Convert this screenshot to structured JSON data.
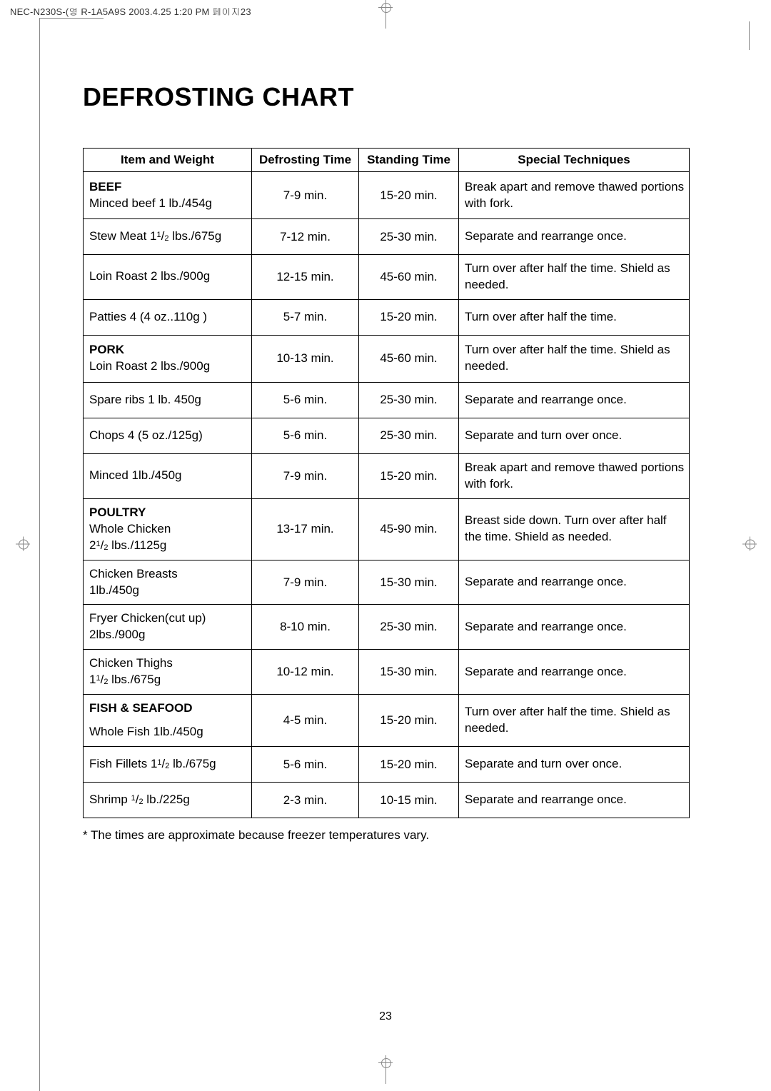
{
  "meta_header": "NEC-N230S-(영 R-1A5A9S  2003.4.25 1:20 PM  페이지23",
  "title": "DEFROSTING CHART",
  "headers": {
    "item": "Item and Weight",
    "defrost": "Defrosting Time",
    "standing": "Standing Time",
    "tech": "Special Techniques"
  },
  "rows": [
    {
      "cat": "BEEF",
      "item": "Minced beef 1 lb./454g",
      "def": "7-9 min.",
      "stand": "15-20 min.",
      "tech": "Break apart and remove thawed portions with fork.",
      "h": "tall"
    },
    {
      "item": "Stew Meat 1¹/₂ lbs./675g",
      "def": "7-12 min.",
      "stand": "25-30 min.",
      "tech": "Separate and rearrange once.",
      "h": "med",
      "frac": "1|1|2| lbs./675g",
      "prefix": "Stew Meat "
    },
    {
      "item": "Loin Roast 2 lbs./900g",
      "def": "12-15 min.",
      "stand": "45-60 min.",
      "tech": "Turn over after half the time. Shield as needed.",
      "h": "med"
    },
    {
      "item": "Patties 4 (4 oz..110g )",
      "def": "5-7 min.",
      "stand": "15-20 min.",
      "tech": "Turn over after half the time.",
      "h": "med"
    },
    {
      "cat": "PORK",
      "item": "Loin Roast 2 lbs./900g",
      "def": "10-13 min.",
      "stand": "45-60 min.",
      "tech": "Turn over after half the time. Shield as needed.",
      "h": "tall"
    },
    {
      "item": "Spare ribs 1 lb. 450g",
      "def": "5-6 min.",
      "stand": "25-30 min.",
      "tech": "Separate and rearrange once.",
      "h": "med"
    },
    {
      "item": "Chops 4 (5 oz./125g)",
      "def": "5-6 min.",
      "stand": "25-30 min.",
      "tech": "Separate and turn over once.",
      "h": "med"
    },
    {
      "item": "Minced 1lb./450g",
      "def": "7-9 min.",
      "stand": "15-20 min.",
      "tech": "Break apart and remove thawed portions with fork.",
      "h": "med"
    },
    {
      "cat": "POULTRY",
      "item": "Whole Chicken",
      "item2": "2¹/₂ lbs./1125g",
      "def": "13-17 min.",
      "stand": "45-90 min.",
      "tech": "Breast side down. Turn over after half the time. Shield as needed.",
      "h": "tall",
      "frac2": "2|1|2| lbs./1125g"
    },
    {
      "item": "Chicken Breasts",
      "item2": "1lb./450g",
      "def": "7-9 min.",
      "stand": "15-30 min.",
      "tech": "Separate and rearrange once.",
      "h": "med"
    },
    {
      "item": "Fryer Chicken(cut up)",
      "item2": "2lbs./900g",
      "def": "8-10 min.",
      "stand": "25-30 min.",
      "tech": "Separate and rearrange once.",
      "h": "med"
    },
    {
      "item": "Chicken Thighs",
      "item2": "1¹/₂ lbs./675g",
      "def": "10-12 min.",
      "stand": "15-30 min.",
      "tech": "Separate and rearrange once.",
      "h": "med",
      "frac2": "1|1|2| lbs./675g"
    },
    {
      "cat": "FISH & SEAFOOD",
      "item": "Whole Fish 1lb./450g",
      "def": "4-5 min.",
      "stand": "15-20 min.",
      "tech": "Turn over after half the time. Shield as needed.",
      "h": "tall",
      "gap": true
    },
    {
      "item": "Fish Fillets 1¹/₂ lb./675g",
      "def": "5-6 min.",
      "stand": "15-20 min.",
      "tech": "Separate and turn over once.",
      "h": "med",
      "frac": "1|1|2| lb./675g",
      "prefix": "Fish Fillets "
    },
    {
      "item": "Shrimp ¹/₂ lb./225g",
      "def": "2-3 min.",
      "stand": "10-15 min.",
      "tech": "Separate and rearrange once.",
      "h": "med",
      "frac": "|1|2| lb./225g",
      "prefix": "Shrimp "
    }
  ],
  "footnote": "* The times are approximate because freezer temperatures vary.",
  "page_num": "23"
}
